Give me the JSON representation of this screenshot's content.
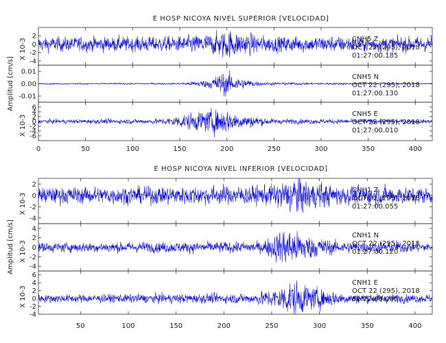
{
  "chart_data": [
    {
      "type": "line",
      "title": "E HOSP NICOYA NIVEL SUPERIOR [VELOCIDAD]",
      "ylabel": "Amplitud [cm/s]",
      "xlim": [
        0,
        418
      ],
      "xticks": [
        0,
        50,
        100,
        150,
        200,
        250,
        300,
        350,
        400
      ],
      "line_color": "#0000ee",
      "panels": [
        {
          "channel": "CNH5   Z",
          "date": "OCT 22 (295), 2018",
          "time": "01:27:00.185",
          "scale_label": "X 10-3",
          "ylim": [
            -5,
            4
          ],
          "yticks": [
            -4,
            -2,
            0,
            2
          ],
          "envelope": [
            {
              "t": 0,
              "amp": 0.002
            },
            {
              "t": 150,
              "amp": 0.0022
            },
            {
              "t": 185,
              "amp": 0.003
            },
            {
              "t": 200,
              "amp": 0.0042
            },
            {
              "t": 210,
              "amp": 0.0035
            },
            {
              "t": 240,
              "amp": 0.0023
            },
            {
              "t": 418,
              "amp": 0.0021
            }
          ]
        },
        {
          "channel": "CNH5   N",
          "date": "OCT 22 (295), 2018",
          "time": "01:27:00.130",
          "scale_label": "",
          "ylim": [
            -0.015,
            0.015
          ],
          "yticks": [
            -0.01,
            0.0,
            0.01
          ],
          "ytick_labels": [
            "-0.01",
            "0.00",
            "0.01"
          ],
          "envelope": [
            {
              "t": 0,
              "amp": 0.0007
            },
            {
              "t": 150,
              "amp": 0.0009
            },
            {
              "t": 180,
              "amp": 0.004
            },
            {
              "t": 198,
              "amp": 0.012
            },
            {
              "t": 215,
              "amp": 0.005
            },
            {
              "t": 240,
              "amp": 0.0015
            },
            {
              "t": 418,
              "amp": 0.0007
            }
          ]
        },
        {
          "channel": "CNH5   E",
          "date": "OCT 22 (295), 2018",
          "time": "01:27:00.010",
          "scale_label": "X 10-3",
          "ylim": [
            -8,
            8
          ],
          "yticks": [
            -6,
            -4,
            -2,
            0,
            2,
            4,
            6
          ],
          "envelope": [
            {
              "t": 0,
              "amp": 0.001
            },
            {
              "t": 130,
              "amp": 0.0013
            },
            {
              "t": 160,
              "amp": 0.004
            },
            {
              "t": 195,
              "amp": 0.0065
            },
            {
              "t": 215,
              "amp": 0.0035
            },
            {
              "t": 250,
              "amp": 0.0013
            },
            {
              "t": 418,
              "amp": 0.001
            }
          ]
        }
      ]
    },
    {
      "type": "line",
      "title": "E HOSP NICOYA NIVEL INFERIOR [VELOCIDAD]",
      "ylabel": "Amplitud [cm/s]",
      "xlim": [
        6,
        418
      ],
      "xticks": [
        50,
        100,
        150,
        200,
        250,
        300,
        350,
        400
      ],
      "line_color": "#0000ee",
      "panels": [
        {
          "channel": "CNH1   Z",
          "date": "OCT 22 (295), 2018",
          "time": "01:27:00.055",
          "scale_label": "X 10-3",
          "ylim": [
            -5,
            3
          ],
          "yticks": [
            -4,
            -2,
            0,
            2
          ],
          "envelope": [
            {
              "t": 6,
              "amp": 0.0017
            },
            {
              "t": 240,
              "amp": 0.002
            },
            {
              "t": 262,
              "amp": 0.003
            },
            {
              "t": 275,
              "amp": 0.0042
            },
            {
              "t": 290,
              "amp": 0.003
            },
            {
              "t": 320,
              "amp": 0.002
            },
            {
              "t": 418,
              "amp": 0.0017
            }
          ]
        },
        {
          "channel": "CNH1   N",
          "date": "OCT 22 (295), 2018",
          "time": "01:27:00.120",
          "scale_label": "X 10-3",
          "ylim": [
            -5,
            5
          ],
          "yticks": [
            -4,
            -2,
            0,
            2,
            4
          ],
          "envelope": [
            {
              "t": 6,
              "amp": 0.0012
            },
            {
              "t": 240,
              "amp": 0.0014
            },
            {
              "t": 258,
              "amp": 0.004
            },
            {
              "t": 265,
              "amp": 0.0048
            },
            {
              "t": 285,
              "amp": 0.0032
            },
            {
              "t": 320,
              "amp": 0.0015
            },
            {
              "t": 418,
              "amp": 0.0012
            }
          ]
        },
        {
          "channel": "CNH1   E",
          "date": "OCT 22 (295), 2018",
          "time": "01:27:00.000",
          "scale_label": "X 10-3",
          "ylim": [
            -4,
            7
          ],
          "yticks": [
            -4,
            -2,
            0,
            2,
            4,
            6
          ],
          "envelope": [
            {
              "t": 6,
              "amp": 0.0012
            },
            {
              "t": 230,
              "amp": 0.0015
            },
            {
              "t": 255,
              "amp": 0.003
            },
            {
              "t": 272,
              "amp": 0.0055
            },
            {
              "t": 290,
              "amp": 0.0035
            },
            {
              "t": 330,
              "amp": 0.0015
            },
            {
              "t": 418,
              "amp": 0.0012
            }
          ]
        }
      ]
    }
  ]
}
